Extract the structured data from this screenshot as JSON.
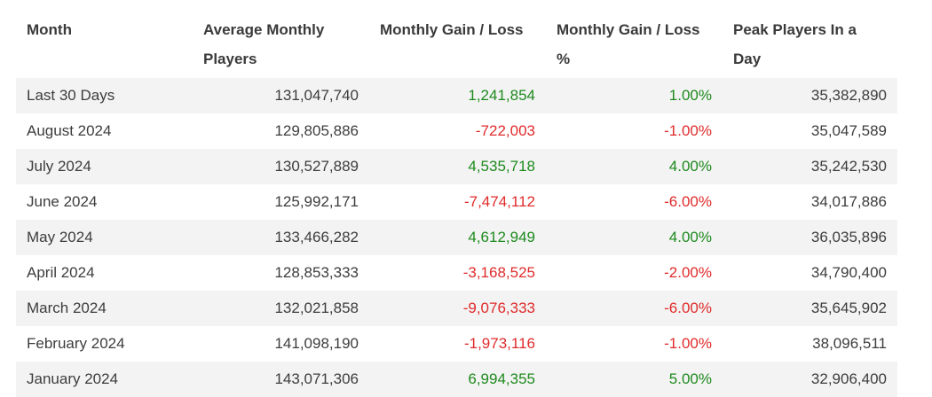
{
  "table": {
    "headers": [
      "Month",
      "Average Monthly Players",
      "Monthly Gain / Loss",
      "Monthly Gain / Loss %",
      "Peak Players In a Day"
    ],
    "rows": [
      {
        "month": "Last 30 Days",
        "avg": "131,047,740",
        "gain": "1,241,854",
        "gain_pct": "1.00%",
        "peak": "35,382,890",
        "trend": "pos"
      },
      {
        "month": "August 2024",
        "avg": "129,805,886",
        "gain": "-722,003",
        "gain_pct": "-1.00%",
        "peak": "35,047,589",
        "trend": "neg"
      },
      {
        "month": "July 2024",
        "avg": "130,527,889",
        "gain": "4,535,718",
        "gain_pct": "4.00%",
        "peak": "35,242,530",
        "trend": "pos"
      },
      {
        "month": "June 2024",
        "avg": "125,992,171",
        "gain": "-7,474,112",
        "gain_pct": "-6.00%",
        "peak": "34,017,886",
        "trend": "neg"
      },
      {
        "month": "May 2024",
        "avg": "133,466,282",
        "gain": "4,612,949",
        "gain_pct": "4.00%",
        "peak": "36,035,896",
        "trend": "pos"
      },
      {
        "month": "April 2024",
        "avg": "128,853,333",
        "gain": "-3,168,525",
        "gain_pct": "-2.00%",
        "peak": "34,790,400",
        "trend": "neg"
      },
      {
        "month": "March 2024",
        "avg": "132,021,858",
        "gain": "-9,076,333",
        "gain_pct": "-6.00%",
        "peak": "35,645,902",
        "trend": "neg"
      },
      {
        "month": "February 2024",
        "avg": "141,098,190",
        "gain": "-1,973,116",
        "gain_pct": "-1.00%",
        "peak": "38,096,511",
        "trend": "neg"
      },
      {
        "month": "January 2024",
        "avg": "143,071,306",
        "gain": "6,994,355",
        "gain_pct": "5.00%",
        "peak": "32,906,400",
        "trend": "pos"
      }
    ]
  },
  "colors": {
    "positive": "#1e8a1e",
    "negative": "#e02b2b",
    "stripe": "#f3f3f3"
  }
}
